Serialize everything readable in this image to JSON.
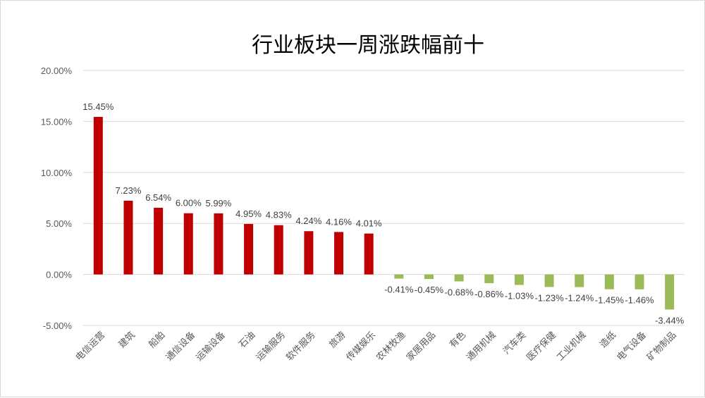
{
  "chart_data": {
    "type": "bar",
    "title": "行业板块一周涨跌幅前十",
    "categories": [
      "电信运营",
      "建筑",
      "船舶",
      "通信设备",
      "运输设备",
      "石油",
      "运输服务",
      "软件服务",
      "旅游",
      "传媒娱乐",
      "农林牧渔",
      "家居用品",
      "有色",
      "通用机械",
      "汽车类",
      "医疗保健",
      "工业机械",
      "造纸",
      "电气设备",
      "矿物制品"
    ],
    "values": [
      15.45,
      7.23,
      6.54,
      6.0,
      5.99,
      4.95,
      4.83,
      4.24,
      4.16,
      4.01,
      -0.41,
      -0.45,
      -0.68,
      -0.86,
      -1.03,
      -1.23,
      -1.24,
      -1.45,
      -1.46,
      -3.44
    ],
    "data_labels": [
      "15.45%",
      "7.23%",
      "6.54%",
      "6.00%",
      "5.99%",
      "4.95%",
      "4.83%",
      "4.24%",
      "4.16%",
      "4.01%",
      "-0.41%",
      "-0.45%",
      "-0.68%",
      "-0.86%",
      "-1.03%",
      "-1.23%",
      "-1.24%",
      "-1.45%",
      "-1.46%",
      "-3.44%"
    ],
    "y_ticks": [
      20,
      15,
      10,
      5,
      0,
      -5
    ],
    "y_tick_labels": [
      "20.00%",
      "15.00%",
      "10.00%",
      "5.00%",
      "0.00%",
      "-5.00%"
    ],
    "ylim": [
      -5,
      20
    ],
    "grid": true,
    "legend": "none",
    "xlabel": "",
    "ylabel": "",
    "colors": {
      "positive": "#c00000",
      "negative": "#9bbb59",
      "grid": "#d9d9d9"
    }
  }
}
